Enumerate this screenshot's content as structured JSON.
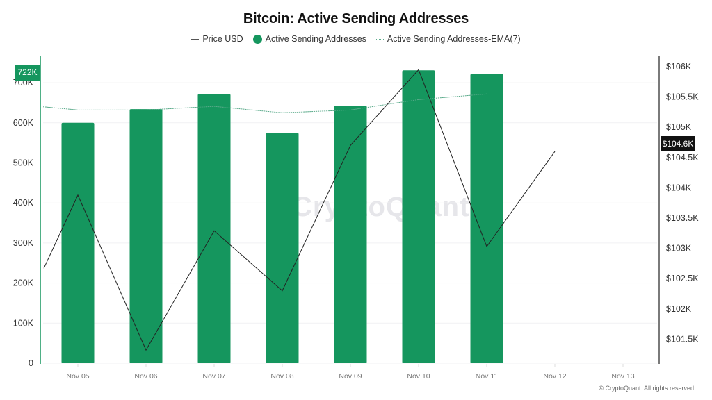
{
  "title": "Bitcoin: Active Sending Addresses",
  "legend": {
    "price": "Price USD",
    "bars": "Active Sending Addresses",
    "ema": "Active Sending Addresses-EMA(7)"
  },
  "watermark": "CryptoQuant",
  "copyright": "© CryptoQuant. All rights reserved",
  "badges": {
    "left": "722K",
    "right": "$104.6K"
  },
  "colors": {
    "bar": "#15965e",
    "price": "#222222",
    "ema": "#5aaa8a",
    "axis_left": "#15965e",
    "axis_right": "#222222"
  },
  "chart_data": {
    "type": "bar",
    "title": "Bitcoin: Active Sending Addresses",
    "categories": [
      "Nov 05",
      "Nov 06",
      "Nov 07",
      "Nov 08",
      "Nov 09",
      "Nov 10",
      "Nov 11",
      "Nov 12",
      "Nov 13"
    ],
    "series": [
      {
        "name": "Active Sending Addresses",
        "type": "bar",
        "axis": "left",
        "values": [
          600000,
          634000,
          672000,
          575000,
          643000,
          731000,
          722000,
          null,
          null
        ]
      },
      {
        "name": "Active Sending Addresses-EMA(7)",
        "type": "line",
        "axis": "left",
        "values": [
          632000,
          632000,
          641000,
          625000,
          632000,
          658000,
          672000,
          null,
          null
        ]
      },
      {
        "name": "Price USD",
        "type": "line",
        "axis": "right",
        "values": [
          103880,
          101320,
          103290,
          102300,
          104700,
          105950,
          103030,
          104600,
          null
        ]
      }
    ],
    "y_left": {
      "ticks": [
        "0",
        "100K",
        "200K",
        "300K",
        "400K",
        "500K",
        "600K",
        "700K"
      ],
      "range": [
        0,
        760000
      ]
    },
    "y_right": {
      "ticks": [
        "$101.5K",
        "$102K",
        "$102.5K",
        "$103K",
        "$103.5K",
        "$104K",
        "$104.5K",
        "$105K",
        "$105.5K",
        "$106K"
      ],
      "range": [
        101100,
        106050
      ]
    },
    "xlabel": "",
    "ylabel": "",
    "grid": true,
    "legend_position": "top"
  }
}
